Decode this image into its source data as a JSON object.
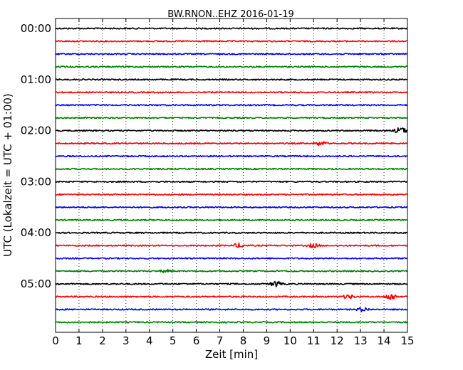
{
  "chart_data": {
    "type": "line",
    "title": "BW.RNON..EHZ 2016-01-19",
    "xlabel": "Zeit  [min]",
    "ylabel": "UTC (Lokalzeit = UTC + 01:00)",
    "xlim": [
      0,
      15
    ],
    "x_ticks": [
      0,
      1,
      2,
      3,
      4,
      5,
      6,
      7,
      8,
      9,
      10,
      11,
      12,
      13,
      14,
      15
    ],
    "y_tick_labels": [
      "00:00",
      "01:00",
      "02:00",
      "03:00",
      "04:00",
      "05:00"
    ],
    "grid": "vertical dotted",
    "trace_minutes": 15,
    "colors": [
      "#000000",
      "#ff0000",
      "#0000ff",
      "#008000"
    ],
    "traces": [
      {
        "start": "00:00",
        "color": "#000000",
        "events": []
      },
      {
        "start": "00:15",
        "color": "#ff0000",
        "events": []
      },
      {
        "start": "00:30",
        "color": "#0000ff",
        "events": []
      },
      {
        "start": "00:45",
        "color": "#008000",
        "events": []
      },
      {
        "start": "01:00",
        "color": "#000000",
        "events": []
      },
      {
        "start": "01:15",
        "color": "#ff0000",
        "events": []
      },
      {
        "start": "01:30",
        "color": "#0000ff",
        "events": []
      },
      {
        "start": "01:45",
        "color": "#008000",
        "events": []
      },
      {
        "start": "02:00",
        "color": "#000000",
        "events": [
          {
            "t": 14.7,
            "amp": 5
          }
        ]
      },
      {
        "start": "02:15",
        "color": "#ff0000",
        "events": [
          {
            "t": 11.3,
            "amp": 3
          }
        ]
      },
      {
        "start": "02:30",
        "color": "#0000ff",
        "events": []
      },
      {
        "start": "02:45",
        "color": "#008000",
        "events": []
      },
      {
        "start": "03:00",
        "color": "#000000",
        "events": []
      },
      {
        "start": "03:15",
        "color": "#ff0000",
        "events": []
      },
      {
        "start": "03:30",
        "color": "#0000ff",
        "events": []
      },
      {
        "start": "03:45",
        "color": "#008000",
        "events": []
      },
      {
        "start": "04:00",
        "color": "#000000",
        "events": []
      },
      {
        "start": "04:15",
        "color": "#ff0000",
        "events": [
          {
            "t": 7.8,
            "amp": 3
          },
          {
            "t": 11.0,
            "amp": 3
          }
        ]
      },
      {
        "start": "04:30",
        "color": "#0000ff",
        "events": []
      },
      {
        "start": "04:45",
        "color": "#008000",
        "events": [
          {
            "t": 4.7,
            "amp": 2
          }
        ]
      },
      {
        "start": "05:00",
        "color": "#000000",
        "events": [
          {
            "t": 9.4,
            "amp": 4
          }
        ]
      },
      {
        "start": "05:15",
        "color": "#ff0000",
        "events": [
          {
            "t": 12.5,
            "amp": 3
          },
          {
            "t": 14.3,
            "amp": 5
          }
        ]
      },
      {
        "start": "05:30",
        "color": "#0000ff",
        "events": [
          {
            "t": 13.1,
            "amp": 3
          }
        ]
      },
      {
        "start": "05:45",
        "color": "#008000",
        "events": []
      }
    ]
  }
}
